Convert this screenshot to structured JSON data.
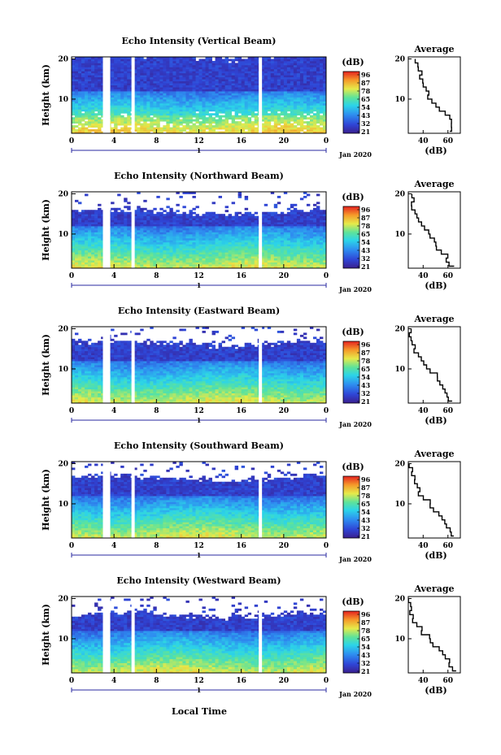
{
  "figure": {
    "xlabel_bottom": "Local Time",
    "date_label": "Jan 2020",
    "day_label": "1",
    "colorbar_label": "(dB)",
    "colorbar_ticks": [
      "96",
      "87",
      "78",
      "65",
      "54",
      "43",
      "32",
      "21"
    ],
    "average_title": "Average",
    "average_xlabel": "(dB)"
  },
  "chart_data": [
    {
      "type": "heatmap",
      "title": "Echo Intensity (Vertical Beam)",
      "ylabel": "Height (km)",
      "x_ticks": [
        "0",
        "4",
        "8",
        "12",
        "16",
        "20",
        "0"
      ],
      "y_ticks": [
        "20",
        "10"
      ],
      "xlim": [
        0,
        24
      ],
      "ylim": [
        1.5,
        20.5
      ],
      "gaps_hours": [
        3.3,
        5.8,
        17.8
      ],
      "top_km": 20.5,
      "avg_x_ticks": [
        "40",
        "60"
      ],
      "avg_profile_km": [
        2,
        4,
        6,
        8,
        10,
        12,
        14,
        16,
        18,
        20
      ],
      "avg_profile_db": [
        62,
        64,
        60,
        54,
        46,
        44,
        40,
        38,
        36,
        34
      ]
    },
    {
      "type": "heatmap",
      "title": "Echo Intensity (Northward Beam)",
      "ylabel": "Height (km)",
      "x_ticks": [
        "0",
        "4",
        "8",
        "12",
        "16",
        "20",
        "0"
      ],
      "y_ticks": [
        "20",
        "10"
      ],
      "xlim": [
        0,
        24
      ],
      "ylim": [
        1.5,
        20.5
      ],
      "gaps_hours": [
        3.3,
        5.8,
        17.8
      ],
      "top_km": 15.5,
      "avg_x_ticks": [
        "40",
        "60"
      ],
      "avg_profile_km": [
        2,
        4,
        6,
        8,
        10,
        12,
        14,
        16,
        18,
        20
      ],
      "avg_profile_db": [
        64,
        60,
        56,
        50,
        45,
        40,
        36,
        33,
        31,
        30
      ]
    },
    {
      "type": "heatmap",
      "title": "Echo Intensity (Eastward Beam)",
      "ylabel": "Height (km)",
      "x_ticks": [
        "0",
        "4",
        "8",
        "12",
        "16",
        "20",
        "0"
      ],
      "y_ticks": [
        "20",
        "10"
      ],
      "xlim": [
        0,
        24
      ],
      "ylim": [
        1.5,
        20.5
      ],
      "gaps_hours": [
        3.3,
        5.8,
        17.8
      ],
      "top_km": 16.5,
      "avg_x_ticks": [
        "40",
        "60"
      ],
      "avg_profile_km": [
        2,
        4,
        6,
        8,
        10,
        12,
        14,
        16,
        18,
        20
      ],
      "avg_profile_db": [
        64,
        60,
        56,
        52,
        46,
        40,
        36,
        33,
        30,
        29
      ]
    },
    {
      "type": "heatmap",
      "title": "Echo Intensity (Southward Beam)",
      "ylabel": "Height (km)",
      "x_ticks": [
        "0",
        "4",
        "8",
        "12",
        "16",
        "20",
        "0"
      ],
      "y_ticks": [
        "20",
        "10"
      ],
      "xlim": [
        0,
        24
      ],
      "ylim": [
        1.5,
        20.5
      ],
      "gaps_hours": [
        3.3,
        5.8,
        17.8
      ],
      "top_km": 16.5,
      "avg_x_ticks": [
        "40",
        "60"
      ],
      "avg_profile_km": [
        2,
        4,
        6,
        8,
        10,
        12,
        14,
        16,
        18,
        20
      ],
      "avg_profile_db": [
        66,
        62,
        57,
        52,
        46,
        41,
        36,
        33,
        31,
        29
      ]
    },
    {
      "type": "heatmap",
      "title": "Echo Intensity (Westward Beam)",
      "ylabel": "Height (km)",
      "x_ticks": [
        "0",
        "4",
        "8",
        "12",
        "16",
        "20",
        "0"
      ],
      "y_ticks": [
        "20",
        "10"
      ],
      "xlim": [
        0,
        24
      ],
      "ylim": [
        1.5,
        20.5
      ],
      "gaps_hours": [
        3.3,
        5.8,
        17.8
      ],
      "top_km": 16.0,
      "avg_x_ticks": [
        "40",
        "60"
      ],
      "avg_profile_km": [
        2,
        4,
        6,
        8,
        10,
        12,
        14,
        16,
        18,
        20
      ],
      "avg_profile_db": [
        66,
        62,
        57,
        52,
        46,
        40,
        35,
        32,
        30,
        29
      ]
    }
  ]
}
